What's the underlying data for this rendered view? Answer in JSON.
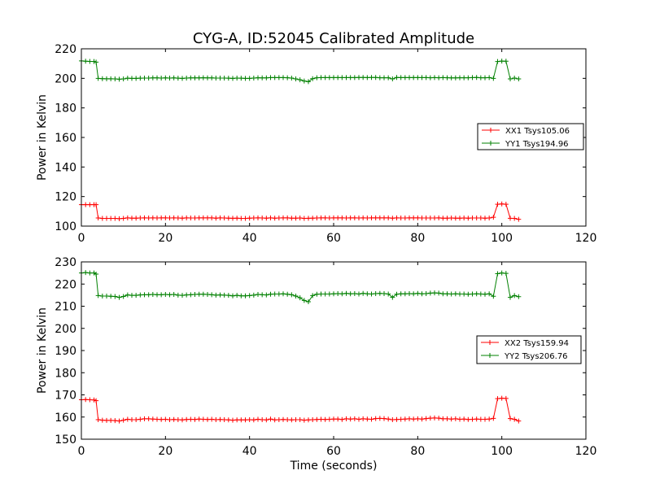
{
  "figure": {
    "title": "CYG-A, ID:52045 Calibrated Amplitude",
    "xlabel": "Time (seconds)"
  },
  "chart_data": [
    {
      "type": "line",
      "title": "CYG-A, ID:52045 Calibrated Amplitude",
      "xlabel": "",
      "ylabel": "Power in Kelvin",
      "xlim": [
        0,
        120
      ],
      "ylim": [
        100,
        220
      ],
      "xticks": [
        0,
        20,
        40,
        60,
        80,
        100,
        120
      ],
      "yticks": [
        100,
        120,
        140,
        160,
        180,
        200,
        220
      ],
      "marker": "plus",
      "legend": {
        "position": "right"
      },
      "series": [
        {
          "name": "XX1 Tsys105.06",
          "color": "#ff0000",
          "x": [
            0,
            1,
            2,
            3,
            3.5,
            4,
            5,
            6,
            7,
            8,
            9,
            10,
            11,
            12,
            13,
            14,
            15,
            16,
            17,
            18,
            19,
            20,
            21,
            22,
            23,
            24,
            25,
            26,
            27,
            28,
            29,
            30,
            31,
            32,
            33,
            34,
            35,
            36,
            37,
            38,
            39,
            40,
            41,
            42,
            43,
            44,
            45,
            46,
            47,
            48,
            49,
            50,
            51,
            52,
            53,
            54,
            55,
            56,
            57,
            58,
            59,
            60,
            61,
            62,
            63,
            64,
            65,
            66,
            67,
            68,
            69,
            70,
            71,
            72,
            73,
            74,
            75,
            76,
            77,
            78,
            79,
            80,
            81,
            82,
            83,
            84,
            85,
            86,
            87,
            88,
            89,
            90,
            91,
            92,
            93,
            94,
            95,
            96,
            97,
            98,
            99,
            100,
            101,
            102,
            103,
            104
          ],
          "y": [
            114.5,
            114.5,
            114.5,
            114.5,
            114.5,
            105.5,
            105.2,
            105.2,
            105.2,
            105.2,
            105.0,
            105.2,
            105.6,
            105.4,
            105.4,
            105.5,
            105.6,
            105.5,
            105.6,
            105.5,
            105.6,
            105.6,
            105.5,
            105.6,
            105.5,
            105.4,
            105.6,
            105.5,
            105.5,
            105.6,
            105.6,
            105.6,
            105.6,
            105.4,
            105.6,
            105.5,
            105.4,
            105.3,
            105.4,
            105.2,
            105.2,
            105.4,
            105.5,
            105.6,
            105.5,
            105.4,
            105.6,
            105.4,
            105.5,
            105.6,
            105.6,
            105.4,
            105.4,
            105.5,
            105.2,
            105.3,
            105.4,
            105.5,
            105.6,
            105.6,
            105.5,
            105.6,
            105.6,
            105.6,
            105.5,
            105.6,
            105.6,
            105.5,
            105.6,
            105.5,
            105.6,
            105.6,
            105.6,
            105.6,
            105.6,
            105.4,
            105.6,
            105.5,
            105.5,
            105.6,
            105.6,
            105.6,
            105.5,
            105.5,
            105.5,
            105.5,
            105.6,
            105.4,
            105.4,
            105.5,
            105.4,
            105.4,
            105.5,
            105.4,
            105.5,
            105.5,
            105.5,
            105.4,
            105.5,
            106.0,
            114.8,
            115.0,
            114.8,
            105.3,
            105.2,
            104.6
          ]
        },
        {
          "name": "YY1 Tsys194.96",
          "color": "#008000",
          "x": [
            0,
            1,
            2,
            3,
            3.5,
            4,
            5,
            6,
            7,
            8,
            9,
            10,
            11,
            12,
            13,
            14,
            15,
            16,
            17,
            18,
            19,
            20,
            21,
            22,
            23,
            24,
            25,
            26,
            27,
            28,
            29,
            30,
            31,
            32,
            33,
            34,
            35,
            36,
            37,
            38,
            39,
            40,
            41,
            42,
            43,
            44,
            45,
            46,
            47,
            48,
            49,
            50,
            51,
            52,
            53,
            54,
            55,
            56,
            57,
            58,
            59,
            60,
            61,
            62,
            63,
            64,
            65,
            66,
            67,
            68,
            69,
            70,
            71,
            72,
            73,
            74,
            75,
            76,
            77,
            78,
            79,
            80,
            81,
            82,
            83,
            84,
            85,
            86,
            87,
            88,
            89,
            90,
            91,
            92,
            93,
            94,
            95,
            96,
            97,
            98,
            99,
            100,
            101,
            102,
            103,
            104
          ],
          "y": [
            211.8,
            211.6,
            211.5,
            211.4,
            211.0,
            200.0,
            199.8,
            199.7,
            199.7,
            199.6,
            199.4,
            199.6,
            200.1,
            200.0,
            200.0,
            200.1,
            200.2,
            200.2,
            200.3,
            200.3,
            200.2,
            200.3,
            200.2,
            200.3,
            200.1,
            200.0,
            200.2,
            200.3,
            200.3,
            200.3,
            200.4,
            200.3,
            200.3,
            200.2,
            200.2,
            200.2,
            200.1,
            200.0,
            200.2,
            200.1,
            200.0,
            200.0,
            200.2,
            200.4,
            200.3,
            200.3,
            200.5,
            200.5,
            200.5,
            200.5,
            200.4,
            200.2,
            199.6,
            199.0,
            198.2,
            197.8,
            199.8,
            200.4,
            200.5,
            200.5,
            200.5,
            200.5,
            200.5,
            200.5,
            200.5,
            200.5,
            200.5,
            200.6,
            200.6,
            200.5,
            200.6,
            200.6,
            200.4,
            200.4,
            200.4,
            199.6,
            200.6,
            200.5,
            200.5,
            200.5,
            200.5,
            200.5,
            200.5,
            200.5,
            200.4,
            200.5,
            200.4,
            200.5,
            200.4,
            200.3,
            200.3,
            200.4,
            200.4,
            200.4,
            200.5,
            200.6,
            200.4,
            200.4,
            200.5,
            200.0,
            211.4,
            211.7,
            211.6,
            199.6,
            200.2,
            199.6
          ]
        }
      ]
    },
    {
      "type": "line",
      "title": "",
      "xlabel": "Time (seconds)",
      "ylabel": "Power in Kelvin",
      "xlim": [
        0,
        120
      ],
      "ylim": [
        150,
        230
      ],
      "xticks": [
        0,
        20,
        40,
        60,
        80,
        100,
        120
      ],
      "yticks": [
        150,
        160,
        170,
        180,
        190,
        200,
        210,
        220,
        230
      ],
      "marker": "plus",
      "legend": {
        "position": "right"
      },
      "series": [
        {
          "name": "XX2 Tsys159.94",
          "color": "#ff0000",
          "x": [
            0,
            1,
            2,
            3,
            3.5,
            4,
            5,
            6,
            7,
            8,
            9,
            10,
            11,
            12,
            13,
            14,
            15,
            16,
            17,
            18,
            19,
            20,
            21,
            22,
            23,
            24,
            25,
            26,
            27,
            28,
            29,
            30,
            31,
            32,
            33,
            34,
            35,
            36,
            37,
            38,
            39,
            40,
            41,
            42,
            43,
            44,
            45,
            46,
            47,
            48,
            49,
            50,
            51,
            52,
            53,
            54,
            55,
            56,
            57,
            58,
            59,
            60,
            61,
            62,
            63,
            64,
            65,
            66,
            67,
            68,
            69,
            70,
            71,
            72,
            73,
            74,
            75,
            76,
            77,
            78,
            79,
            80,
            81,
            82,
            83,
            84,
            85,
            86,
            87,
            88,
            89,
            90,
            91,
            92,
            93,
            94,
            95,
            96,
            97,
            98,
            99,
            100,
            101,
            102,
            103,
            104
          ],
          "y": [
            167.8,
            167.9,
            167.8,
            167.7,
            167.4,
            158.8,
            158.6,
            158.5,
            158.5,
            158.4,
            158.2,
            158.6,
            159.0,
            158.8,
            158.8,
            159.0,
            159.2,
            159.2,
            159.1,
            159.0,
            158.9,
            159.0,
            158.8,
            158.9,
            158.8,
            158.7,
            158.9,
            159.0,
            158.9,
            159.1,
            159.0,
            158.9,
            159.0,
            158.8,
            158.9,
            158.8,
            158.7,
            158.6,
            158.7,
            158.7,
            158.7,
            158.8,
            158.7,
            159.0,
            158.8,
            158.7,
            159.1,
            158.7,
            158.8,
            158.9,
            158.8,
            158.7,
            158.8,
            158.8,
            158.6,
            158.7,
            158.8,
            158.9,
            159.0,
            158.9,
            159.0,
            159.1,
            159.1,
            158.9,
            159.2,
            159.1,
            159.2,
            159.0,
            159.2,
            159.1,
            159.0,
            159.3,
            159.4,
            159.3,
            159.1,
            158.8,
            158.9,
            159.0,
            159.1,
            159.2,
            159.1,
            159.2,
            159.1,
            159.3,
            159.5,
            159.6,
            159.5,
            159.2,
            159.2,
            159.1,
            159.2,
            159.0,
            159.1,
            158.9,
            159.0,
            159.1,
            159.0,
            159.0,
            159.1,
            159.4,
            168.3,
            168.5,
            168.4,
            159.3,
            159.0,
            158.2
          ]
        },
        {
          "name": "YY2 Tsys206.76",
          "color": "#008000",
          "x": [
            0,
            1,
            2,
            3,
            3.5,
            4,
            5,
            6,
            7,
            8,
            9,
            10,
            11,
            12,
            13,
            14,
            15,
            16,
            17,
            18,
            19,
            20,
            21,
            22,
            23,
            24,
            25,
            26,
            27,
            28,
            29,
            30,
            31,
            32,
            33,
            34,
            35,
            36,
            37,
            38,
            39,
            40,
            41,
            42,
            43,
            44,
            45,
            46,
            47,
            48,
            49,
            50,
            51,
            52,
            53,
            54,
            55,
            56,
            57,
            58,
            59,
            60,
            61,
            62,
            63,
            64,
            65,
            66,
            67,
            68,
            69,
            70,
            71,
            72,
            73,
            74,
            75,
            76,
            77,
            78,
            79,
            80,
            81,
            82,
            83,
            84,
            85,
            86,
            87,
            88,
            89,
            90,
            91,
            92,
            93,
            94,
            95,
            96,
            97,
            98,
            99,
            100,
            101,
            102,
            103,
            104
          ],
          "y": [
            225.0,
            225.2,
            225.0,
            225.0,
            224.5,
            214.8,
            214.6,
            214.6,
            214.5,
            214.4,
            214.0,
            214.4,
            215.1,
            214.9,
            214.9,
            215.1,
            215.2,
            215.2,
            215.3,
            215.2,
            215.2,
            215.3,
            215.2,
            215.3,
            215.0,
            214.9,
            215.1,
            215.2,
            215.3,
            215.4,
            215.4,
            215.3,
            215.2,
            215.0,
            215.1,
            215.0,
            214.9,
            214.7,
            214.9,
            214.7,
            214.7,
            214.8,
            215.0,
            215.3,
            215.2,
            215.1,
            215.4,
            215.5,
            215.5,
            215.6,
            215.4,
            215.2,
            214.6,
            213.8,
            212.6,
            212.0,
            214.8,
            215.4,
            215.5,
            215.5,
            215.5,
            215.6,
            215.7,
            215.6,
            215.8,
            215.6,
            215.7,
            215.5,
            215.8,
            215.6,
            215.5,
            215.7,
            215.8,
            215.7,
            215.5,
            214.0,
            215.4,
            215.6,
            215.6,
            215.7,
            215.6,
            215.8,
            215.6,
            215.7,
            215.9,
            216.0,
            215.9,
            215.6,
            215.6,
            215.5,
            215.6,
            215.5,
            215.5,
            215.4,
            215.5,
            215.6,
            215.5,
            215.4,
            215.6,
            214.5,
            224.7,
            225.0,
            224.8,
            214.0,
            214.8,
            214.3
          ]
        }
      ]
    }
  ]
}
